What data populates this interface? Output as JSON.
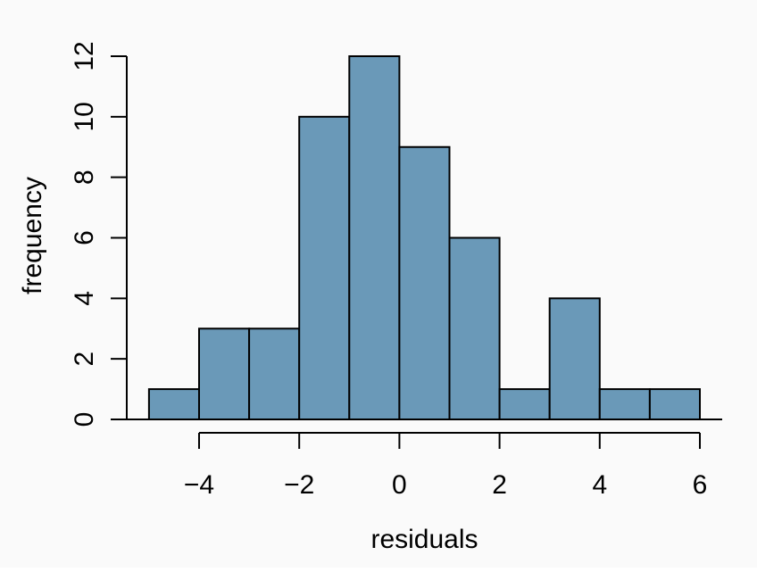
{
  "chart_data": {
    "type": "bar",
    "subtype": "histogram",
    "title": "",
    "xlabel": "residuals",
    "ylabel": "frequency",
    "breaks": [
      -5,
      -4,
      -3,
      -2,
      -1,
      0,
      1,
      2,
      3,
      4,
      5,
      6
    ],
    "counts": [
      1,
      3,
      3,
      10,
      12,
      9,
      6,
      1,
      4,
      1,
      1
    ],
    "x_tick_values": [
      -4,
      -2,
      0,
      2,
      4,
      6
    ],
    "x_tick_labels": [
      "−4",
      "−2",
      "0",
      "2",
      "4",
      "6"
    ],
    "y_tick_values": [
      0,
      2,
      4,
      6,
      8,
      10,
      12
    ],
    "y_tick_labels": [
      "0",
      "2",
      "4",
      "6",
      "8",
      "10",
      "12"
    ],
    "xlim": [
      -5,
      6
    ],
    "ylim": [
      0,
      12
    ],
    "grid": false,
    "legend": "none",
    "colors": {
      "bar_fill": "#6A99B8",
      "bar_border": "#000000",
      "axis": "#000000",
      "text": "#000000",
      "background": "#FAFAFA"
    }
  }
}
